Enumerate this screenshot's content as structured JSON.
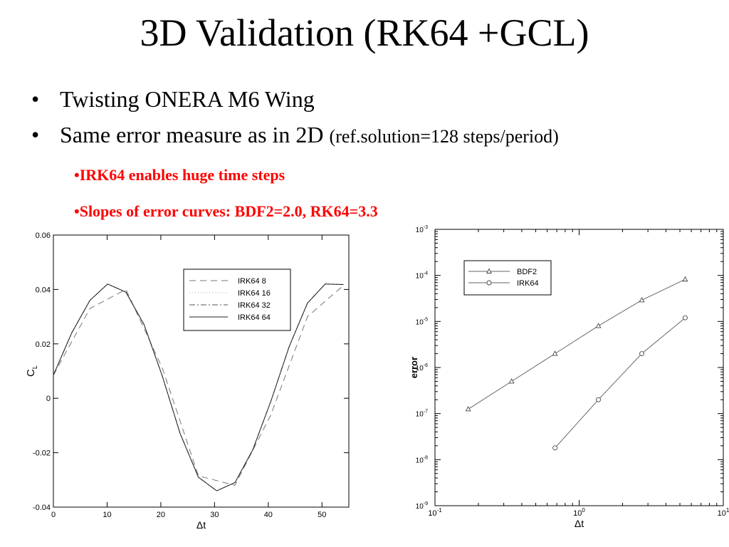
{
  "slide": {
    "title": "3D Validation (RK64 +GCL)",
    "bullet_char": "•",
    "bullets": [
      {
        "main": "Twisting ONERA M6 Wing",
        "note": ""
      },
      {
        "main": "Same error measure as in 2D",
        "note": "(ref.solution=128 steps/period)"
      }
    ],
    "subbullets": [
      "•IRK64 enables huge time steps",
      "•Slopes of error curves:  BDF2=2.0, RK64=3.3"
    ],
    "highlight_color": "#ff0000"
  },
  "chart_data": [
    {
      "type": "line",
      "xlabel": "Δt",
      "ylabel": "C",
      "ylabel_sub": "L",
      "xlim": [
        0,
        55
      ],
      "ylim": [
        -0.04,
        0.06
      ],
      "xticks": [
        0,
        10,
        20,
        30,
        40,
        50
      ],
      "xtick_labels": [
        "0",
        "10",
        "20",
        "30",
        "40",
        "50"
      ],
      "yticks": [
        -0.04,
        -0.02,
        0,
        0.02,
        0.04,
        0.06
      ],
      "ytick_labels": [
        "-0.04",
        "-0.02",
        "0",
        "0.02",
        "0.04",
        "0.06"
      ],
      "grid": false,
      "legend_position": "top-right",
      "series": [
        {
          "name": "IRK64  8",
          "style": "dashed",
          "x": [
            0,
            6.8,
            13.5,
            20.3,
            27.0,
            33.8,
            40.5,
            47.3,
            54
          ],
          "y": [
            0.0085,
            0.033,
            0.04,
            0.011,
            -0.0285,
            -0.032,
            -0.006,
            0.03,
            0.0415
          ]
        },
        {
          "name": "IRK64  16",
          "style": "dotted",
          "x": [
            0,
            3.4,
            6.8,
            10.1,
            13.5,
            16.9,
            20.3,
            23.6,
            27.0,
            30.4,
            33.8,
            37.1,
            40.5,
            43.9,
            47.3,
            50.6,
            54
          ],
          "y": [
            0.0085,
            0.024,
            0.036,
            0.042,
            0.039,
            0.027,
            0.008,
            -0.013,
            -0.029,
            -0.034,
            -0.031,
            -0.019,
            -0.001,
            0.019,
            0.035,
            0.042,
            0.0418
          ]
        },
        {
          "name": "IRK64  32",
          "style": "dashdot",
          "x": [
            0,
            3.4,
            6.8,
            10.1,
            13.5,
            16.9,
            20.3,
            23.6,
            27.0,
            30.4,
            33.8,
            37.1,
            40.5,
            43.9,
            47.3,
            50.6,
            54
          ],
          "y": [
            0.0085,
            0.024,
            0.036,
            0.042,
            0.039,
            0.027,
            0.008,
            -0.013,
            -0.029,
            -0.034,
            -0.031,
            -0.019,
            -0.001,
            0.019,
            0.035,
            0.042,
            0.0418
          ]
        },
        {
          "name": "IRK64  64",
          "style": "solid",
          "x": [
            0,
            3.4,
            6.8,
            10.1,
            13.5,
            16.9,
            20.3,
            23.6,
            27.0,
            30.4,
            33.8,
            37.1,
            40.5,
            43.9,
            47.3,
            50.6,
            54
          ],
          "y": [
            0.0085,
            0.024,
            0.036,
            0.042,
            0.039,
            0.027,
            0.008,
            -0.013,
            -0.029,
            -0.034,
            -0.031,
            -0.019,
            -0.001,
            0.019,
            0.035,
            0.042,
            0.0418
          ]
        }
      ]
    },
    {
      "type": "line",
      "xlabel": "Δt",
      "ylabel": "error",
      "xscale": "log",
      "yscale": "log",
      "xlim": [
        0.1,
        10
      ],
      "ylim": [
        1e-09,
        0.001
      ],
      "xtick_bases": [
        "10",
        "10",
        "10"
      ],
      "xtick_exponents": [
        "-1",
        "0",
        "1"
      ],
      "ytick_bases": [
        "10",
        "10",
        "10",
        "10",
        "10",
        "10",
        "10"
      ],
      "ytick_exponents": [
        "-9",
        "-8",
        "-7",
        "-6",
        "-5",
        "-4",
        "-3"
      ],
      "grid": false,
      "legend_position": "top-left",
      "series": [
        {
          "name": "BDF2",
          "marker": "triangle",
          "x": [
            0.17,
            0.34,
            0.68,
            1.36,
            2.72,
            5.44
          ],
          "y": [
            1.25e-07,
            5e-07,
            2e-06,
            8e-06,
            2.9e-05,
            8.2e-05
          ]
        },
        {
          "name": "IRK64",
          "marker": "circle",
          "x": [
            0.68,
            1.36,
            2.72,
            5.44
          ],
          "y": [
            1.8e-08,
            2e-07,
            2e-06,
            1.2e-05
          ]
        }
      ]
    }
  ]
}
